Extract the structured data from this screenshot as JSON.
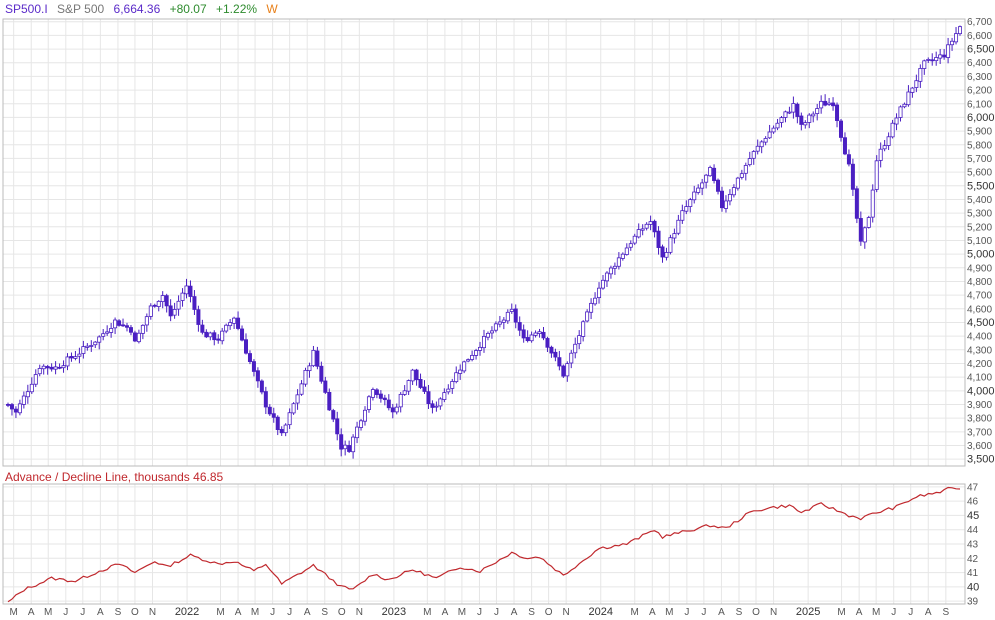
{
  "header": {
    "symbol": "SP500.I",
    "name": "S&P 500",
    "price": "6,664.36",
    "change": "+80.07",
    "change_pct": "+1.22%",
    "interval": "W"
  },
  "indicator": {
    "label": "Advance / Decline Line, thousands",
    "value": "46.85"
  },
  "colors": {
    "symbol": "#5b2bc9",
    "name": "#777777",
    "price": "#5b2bc9",
    "up": "#2e8b2e",
    "interval": "#e8801a",
    "candle": "#4a1fc2",
    "ad_line": "#c0282d",
    "grid": "#e6e6e6"
  },
  "chart_data": [
    {
      "type": "candlestick",
      "title": "",
      "interval": "weekly",
      "y_ticks": [
        "3,500",
        "3,600",
        "3,700",
        "3,800",
        "3,900",
        "4,000",
        "4,100",
        "4,200",
        "4,300",
        "4,400",
        "4,500",
        "4,600",
        "4,700",
        "4,800",
        "4,900",
        "5,000",
        "5,100",
        "5,200",
        "5,300",
        "5,400",
        "5,500",
        "5,600",
        "5,700",
        "5,800",
        "5,900",
        "6,000",
        "6,100",
        "6,200",
        "6,300",
        "6,400",
        "6,500",
        "6,600",
        "6,700"
      ],
      "major_y_ticks": [
        "3,500",
        "4,000",
        "4,500",
        "5,000",
        "5,500",
        "6,000",
        "6,500"
      ],
      "ylim": [
        3450,
        6720
      ],
      "x_labels": [
        "M",
        "A",
        "M",
        "J",
        "J",
        "A",
        "S",
        "O",
        "N",
        "2022",
        "M",
        "A",
        "M",
        "J",
        "J",
        "A",
        "S",
        "O",
        "N",
        "2023",
        "M",
        "A",
        "M",
        "J",
        "J",
        "A",
        "S",
        "O",
        "N",
        "2024",
        "M",
        "A",
        "M",
        "J",
        "J",
        "A",
        "S",
        "O",
        "N",
        "2025",
        "M",
        "A",
        "M",
        "J",
        "J",
        "A",
        "S"
      ],
      "x_ticks": [
        "2021-03",
        "2021-04",
        "2021-05",
        "2021-06",
        "2021-07",
        "2021-08",
        "2021-09",
        "2021-10",
        "2021-11",
        "2022-01",
        "2022-03",
        "2022-04",
        "2022-05",
        "2022-06",
        "2022-07",
        "2022-08",
        "2022-09",
        "2022-10",
        "2022-11",
        "2023-01",
        "2023-03",
        "2023-04",
        "2023-05",
        "2023-06",
        "2023-07",
        "2023-08",
        "2023-09",
        "2023-10",
        "2023-11",
        "2024-01",
        "2024-03",
        "2024-04",
        "2024-05",
        "2024-06",
        "2024-07",
        "2024-08",
        "2024-09",
        "2024-10",
        "2024-11",
        "2025-01",
        "2025-03",
        "2025-04",
        "2025-05",
        "2025-06",
        "2025-07",
        "2025-08",
        "2025-09"
      ],
      "x_range": [
        "2021-02-19",
        "2025-09-26"
      ],
      "anchors": [
        [
          "2021-02-19",
          3900
        ],
        [
          "2021-03-05",
          3840
        ],
        [
          "2021-04-16",
          4180
        ],
        [
          "2021-05-14",
          4170
        ],
        [
          "2021-06-25",
          4280
        ],
        [
          "2021-07-30",
          4390
        ],
        [
          "2021-08-27",
          4510
        ],
        [
          "2021-09-24",
          4450
        ],
        [
          "2021-10-01",
          4350
        ],
        [
          "2021-10-29",
          4610
        ],
        [
          "2021-11-19",
          4700
        ],
        [
          "2021-12-03",
          4540
        ],
        [
          "2021-12-31",
          4770
        ],
        [
          "2022-01-28",
          4420
        ],
        [
          "2022-02-25",
          4380
        ],
        [
          "2022-03-25",
          4540
        ],
        [
          "2022-04-29",
          4130
        ],
        [
          "2022-05-20",
          3900
        ],
        [
          "2022-06-17",
          3670
        ],
        [
          "2022-07-29",
          4130
        ],
        [
          "2022-08-12",
          4280
        ],
        [
          "2022-09-30",
          3590
        ],
        [
          "2022-10-14",
          3580
        ],
        [
          "2022-11-25",
          4030
        ],
        [
          "2022-12-30",
          3840
        ],
        [
          "2023-02-03",
          4140
        ],
        [
          "2023-03-10",
          3860
        ],
        [
          "2023-04-28",
          4170
        ],
        [
          "2023-06-16",
          4410
        ],
        [
          "2023-07-28",
          4580
        ],
        [
          "2023-08-18",
          4370
        ],
        [
          "2023-09-15",
          4450
        ],
        [
          "2023-10-27",
          4120
        ],
        [
          "2023-12-29",
          4770
        ],
        [
          "2024-02-23",
          5090
        ],
        [
          "2024-03-28",
          5250
        ],
        [
          "2024-04-19",
          4970
        ],
        [
          "2024-05-24",
          5300
        ],
        [
          "2024-07-12",
          5610
        ],
        [
          "2024-08-02",
          5350
        ],
        [
          "2024-09-20",
          5700
        ],
        [
          "2024-10-18",
          5860
        ],
        [
          "2024-12-06",
          6090
        ],
        [
          "2024-12-20",
          5930
        ],
        [
          "2025-01-24",
          6100
        ],
        [
          "2025-02-14",
          6110
        ],
        [
          "2025-03-14",
          5640
        ],
        [
          "2025-04-04",
          5070
        ],
        [
          "2025-04-18",
          5280
        ],
        [
          "2025-05-02",
          5690
        ],
        [
          "2025-06-06",
          6000
        ],
        [
          "2025-06-27",
          6170
        ],
        [
          "2025-07-25",
          6390
        ],
        [
          "2025-08-29",
          6460
        ],
        [
          "2025-09-26",
          6664
        ]
      ]
    },
    {
      "type": "line",
      "title": "Advance / Decline Line, thousands",
      "last_value": 46.85,
      "y_ticks": [
        "39",
        "40",
        "41",
        "42",
        "43",
        "44",
        "45",
        "46",
        "47"
      ],
      "major_y_ticks": [
        "40",
        "45"
      ],
      "ylim": [
        38.8,
        47.2
      ],
      "anchors": [
        [
          "2021-02-19",
          38.9
        ],
        [
          "2021-03-19",
          39.8
        ],
        [
          "2021-05-07",
          40.6
        ],
        [
          "2021-06-18",
          40.4
        ],
        [
          "2021-07-30",
          41.1
        ],
        [
          "2021-09-03",
          41.6
        ],
        [
          "2021-10-01",
          41.0
        ],
        [
          "2021-11-05",
          41.8
        ],
        [
          "2021-11-26",
          41.4
        ],
        [
          "2022-01-07",
          42.2
        ],
        [
          "2022-02-25",
          41.6
        ],
        [
          "2022-03-25",
          41.8
        ],
        [
          "2022-04-29",
          41.1
        ],
        [
          "2022-05-20",
          41.6
        ],
        [
          "2022-06-17",
          40.2
        ],
        [
          "2022-08-12",
          41.5
        ],
        [
          "2022-09-30",
          40.0
        ],
        [
          "2022-10-21",
          39.8
        ],
        [
          "2022-11-25",
          40.9
        ],
        [
          "2022-12-23",
          40.5
        ],
        [
          "2023-02-03",
          41.2
        ],
        [
          "2023-03-17",
          40.6
        ],
        [
          "2023-04-28",
          41.4
        ],
        [
          "2023-06-02",
          41.1
        ],
        [
          "2023-07-28",
          42.4
        ],
        [
          "2023-08-25",
          42.0
        ],
        [
          "2023-09-15",
          42.1
        ],
        [
          "2023-10-27",
          40.8
        ],
        [
          "2023-12-29",
          42.7
        ],
        [
          "2024-02-16",
          43.0
        ],
        [
          "2024-04-05",
          44.0
        ],
        [
          "2024-04-19",
          43.5
        ],
        [
          "2024-05-31",
          43.9
        ],
        [
          "2024-07-12",
          44.3
        ],
        [
          "2024-08-09",
          44.1
        ],
        [
          "2024-09-20",
          45.2
        ],
        [
          "2024-10-18",
          45.5
        ],
        [
          "2024-11-29",
          45.7
        ],
        [
          "2024-12-20",
          45.2
        ],
        [
          "2025-01-24",
          45.8
        ],
        [
          "2025-03-14",
          45.0
        ],
        [
          "2025-04-04",
          44.8
        ],
        [
          "2025-05-02",
          45.2
        ],
        [
          "2025-06-06",
          45.6
        ],
        [
          "2025-07-11",
          46.3
        ],
        [
          "2025-08-29",
          46.7
        ],
        [
          "2025-09-12",
          47.0
        ],
        [
          "2025-09-26",
          46.85
        ]
      ]
    }
  ]
}
